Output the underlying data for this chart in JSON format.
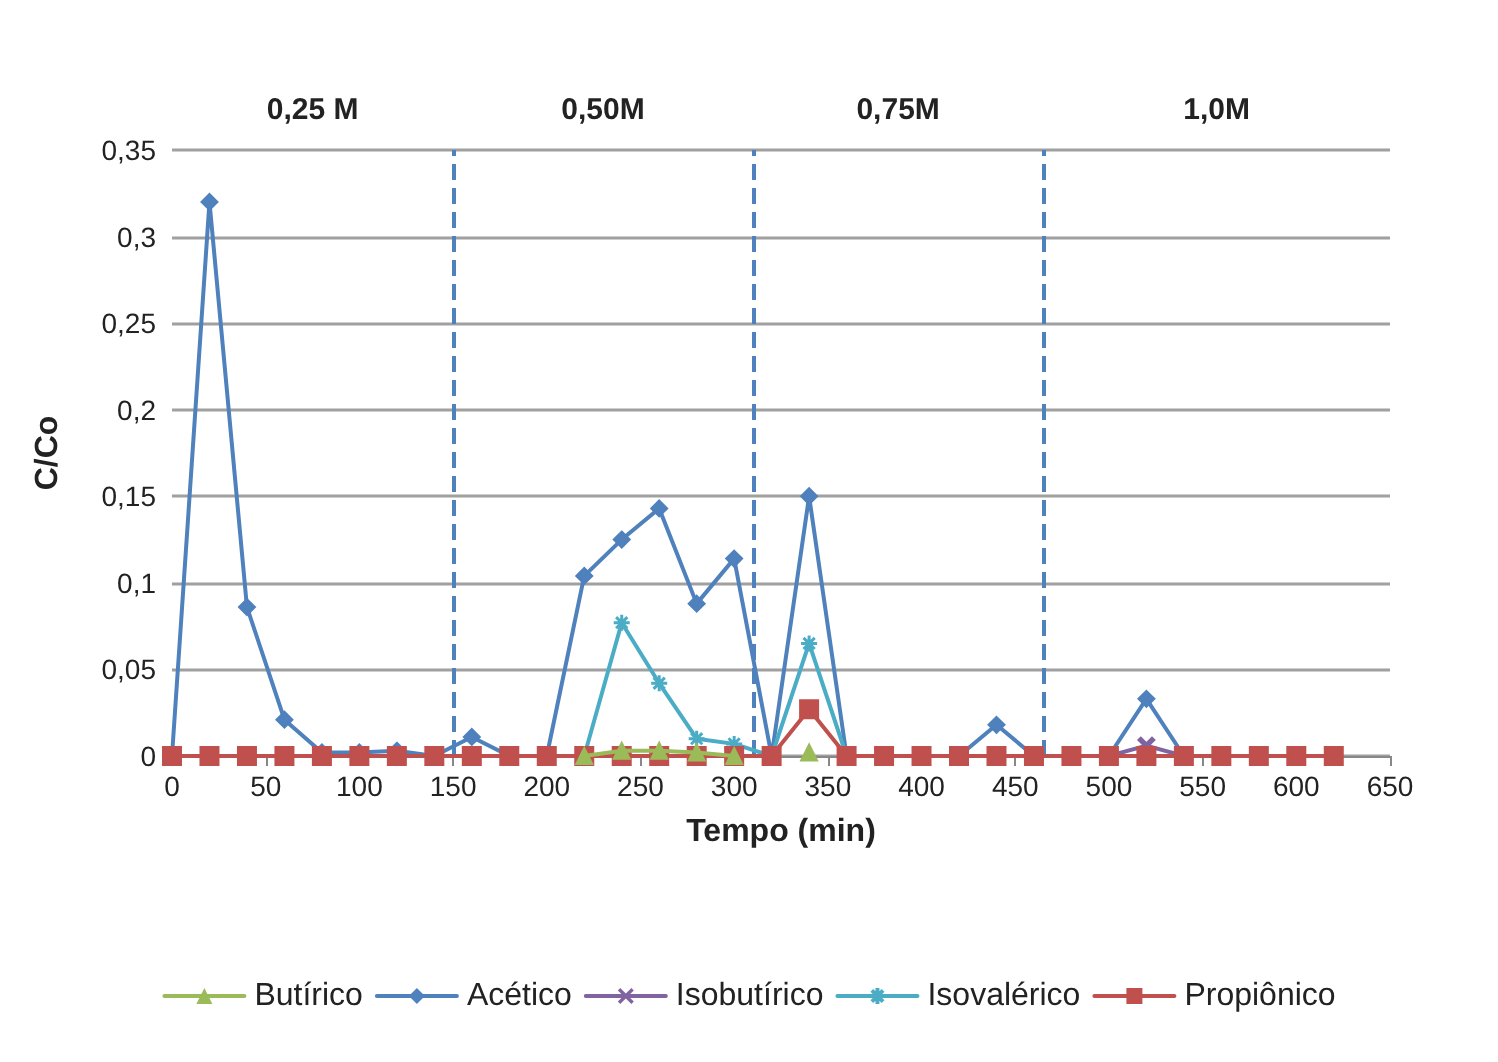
{
  "chart_data": {
    "type": "line",
    "xlabel": "Tempo (min)",
    "ylabel": "C/Co",
    "x": [
      0,
      20,
      40,
      60,
      80,
      100,
      120,
      140,
      160,
      180,
      200,
      220,
      240,
      260,
      280,
      300,
      320,
      340,
      360,
      380,
      400,
      420,
      440,
      460,
      480,
      500,
      520,
      540,
      560,
      580,
      600,
      620
    ],
    "series": [
      {
        "name": "Butírico",
        "color": "#9bbb59",
        "marker": "triangle",
        "values": [
          null,
          null,
          null,
          null,
          null,
          null,
          null,
          null,
          null,
          null,
          null,
          0,
          0.003,
          0.003,
          0.002,
          0,
          null,
          0.002,
          null,
          null,
          null,
          null,
          null,
          null,
          null,
          null,
          null,
          null,
          null,
          null,
          null,
          null
        ]
      },
      {
        "name": "Acético",
        "color": "#4f81bd",
        "marker": "diamond",
        "values": [
          0,
          0.32,
          0.086,
          0.021,
          0.002,
          0.002,
          0.003,
          0,
          0.011,
          0,
          0,
          0.104,
          0.125,
          0.143,
          0.088,
          0.114,
          0,
          0.15,
          0,
          0,
          0,
          0,
          0.018,
          0,
          0,
          0,
          0.033,
          0,
          0,
          null,
          null,
          null
        ]
      },
      {
        "name": "Isobutírico",
        "color": "#8064a2",
        "marker": "cross",
        "values": [
          null,
          null,
          null,
          null,
          null,
          null,
          null,
          null,
          null,
          null,
          null,
          null,
          null,
          null,
          null,
          null,
          null,
          null,
          null,
          null,
          null,
          null,
          null,
          null,
          null,
          0,
          0.006,
          0,
          null,
          null,
          null,
          null
        ]
      },
      {
        "name": "Isovalérico",
        "color": "#4bacc6",
        "marker": "star",
        "values": [
          null,
          null,
          null,
          null,
          null,
          null,
          null,
          null,
          null,
          null,
          null,
          0,
          0.077,
          0.042,
          0.01,
          0.007,
          0,
          0.065,
          0,
          null,
          null,
          null,
          null,
          null,
          null,
          null,
          null,
          null,
          null,
          null,
          null,
          null
        ]
      },
      {
        "name": "Propiônico",
        "color": "#c0504d",
        "marker": "square",
        "values": [
          0,
          0,
          0,
          0,
          0,
          0,
          0,
          0,
          0,
          0,
          0,
          0,
          0,
          0,
          0,
          0,
          0,
          0.027,
          0,
          0,
          0,
          0,
          0,
          0,
          0,
          0,
          0,
          0,
          0,
          0,
          0,
          0
        ]
      }
    ],
    "xlim": [
      0,
      650
    ],
    "xticks": [
      0,
      50,
      100,
      150,
      200,
      250,
      300,
      350,
      400,
      450,
      500,
      550,
      600,
      650
    ],
    "ylim": [
      0,
      0.35
    ],
    "yticks": [
      0,
      {
        "value": 0.05,
        "label": "0,05"
      },
      {
        "value": 0.1,
        "label": "0,1"
      },
      {
        "value": 0.15,
        "label": "0,15"
      },
      {
        "value": 0.2,
        "label": "0,2"
      },
      {
        "value": 0.25,
        "label": "0,25"
      },
      {
        "value": 0.3,
        "label": "0,3"
      },
      {
        "value": 0.35,
        "label": "0,35"
      }
    ],
    "ref_lines": [
      {
        "axis": "x",
        "value": 150,
        "color": "#4f81bd",
        "line_style": "dashed"
      },
      {
        "axis": "x",
        "value": 310,
        "color": "#4f81bd",
        "line_style": "dashed"
      },
      {
        "axis": "x",
        "value": 465,
        "color": "#4f81bd",
        "line_style": "dashed"
      }
    ],
    "annotations": [
      "0,25 M",
      "0,50M",
      "0,75M",
      "1,0M"
    ],
    "grid": "y",
    "legend": "bottom"
  }
}
